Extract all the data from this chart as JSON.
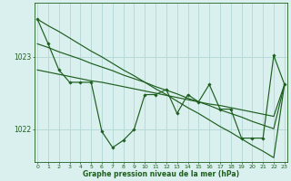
{
  "xlabel": "Graphe pression niveau de la mer (hPa)",
  "hours": [
    0,
    1,
    2,
    3,
    4,
    5,
    6,
    7,
    8,
    9,
    10,
    11,
    12,
    13,
    14,
    15,
    16,
    17,
    18,
    19,
    20,
    21,
    22,
    23
  ],
  "y_main": [
    1023.52,
    1023.18,
    1022.82,
    1022.65,
    1022.65,
    1022.65,
    1021.97,
    1021.75,
    1021.85,
    1022.0,
    1022.48,
    1022.48,
    1022.55,
    1022.22,
    1022.48,
    1022.38,
    1022.62,
    1022.28,
    1022.28,
    1021.88,
    1021.88,
    1021.88,
    1023.02,
    1022.62
  ],
  "y_trend1": [
    1023.52,
    1023.43,
    1023.35,
    1023.26,
    1023.17,
    1023.08,
    1023.0,
    1022.91,
    1022.82,
    1022.74,
    1022.65,
    1022.56,
    1022.48,
    1022.39,
    1022.3,
    1022.22,
    1022.13,
    1022.04,
    1021.96,
    1021.87,
    1021.78,
    1021.7,
    1021.61,
    1022.62
  ],
  "y_trend2": [
    1023.18,
    1023.13,
    1023.07,
    1023.02,
    1022.97,
    1022.91,
    1022.86,
    1022.81,
    1022.75,
    1022.7,
    1022.65,
    1022.59,
    1022.54,
    1022.49,
    1022.43,
    1022.38,
    1022.33,
    1022.27,
    1022.22,
    1022.17,
    1022.11,
    1022.06,
    1022.01,
    1022.62
  ],
  "y_trend3": [
    1022.82,
    1022.79,
    1022.76,
    1022.73,
    1022.7,
    1022.67,
    1022.65,
    1022.62,
    1022.59,
    1022.56,
    1022.53,
    1022.5,
    1022.47,
    1022.44,
    1022.41,
    1022.38,
    1022.35,
    1022.33,
    1022.3,
    1022.27,
    1022.24,
    1022.21,
    1022.18,
    1022.62
  ],
  "bg_color": "#d9f0ee",
  "grid_color": "#b2d8d5",
  "line_color": "#1e5e1e",
  "yticks": [
    1022,
    1023
  ],
  "ylim": [
    1021.55,
    1023.75
  ],
  "xlim": [
    -0.3,
    23.3
  ]
}
